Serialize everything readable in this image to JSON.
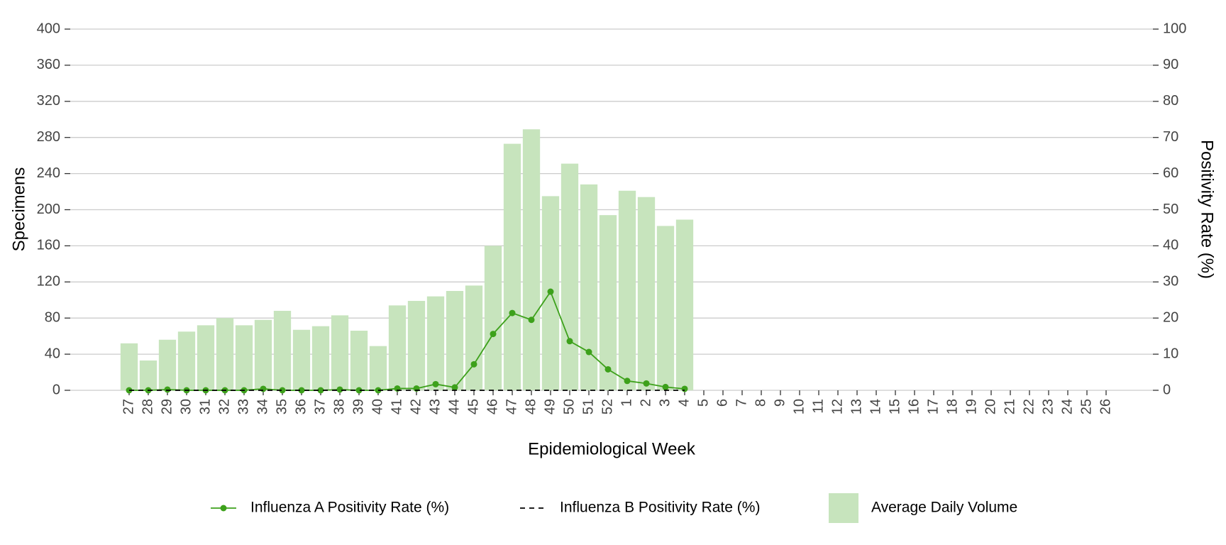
{
  "chart_data": {
    "type": "bar",
    "xlabel": "Epidemiological Week",
    "ylabel": "Specimens",
    "y2label": "Positivity Rate (%)",
    "categories": [
      "27",
      "28",
      "29",
      "30",
      "31",
      "32",
      "33",
      "34",
      "35",
      "36",
      "37",
      "38",
      "39",
      "40",
      "41",
      "42",
      "43",
      "44",
      "45",
      "46",
      "47",
      "48",
      "49",
      "50",
      "51",
      "52",
      "1",
      "2",
      "3",
      "4",
      "5",
      "6",
      "7",
      "8",
      "9",
      "10",
      "11",
      "12",
      "13",
      "14",
      "15",
      "16",
      "17",
      "18",
      "19",
      "20",
      "21",
      "22",
      "23",
      "24",
      "25",
      "26"
    ],
    "series": [
      {
        "name": "Influenza A Positivity Rate (%)",
        "type": "line",
        "axis": "y2",
        "color": "#3da11b",
        "markers": true,
        "values": [
          0,
          0,
          0.2,
          0,
          0,
          0,
          0,
          0.4,
          0,
          0,
          0,
          0.2,
          0,
          0,
          0.5,
          0.5,
          1.7,
          0.8,
          7.2,
          15.6,
          21.4,
          19.5,
          27.3,
          13.6,
          10.6,
          5.8,
          2.6,
          1.9,
          0.9,
          0.4,
          null,
          null,
          null,
          null,
          null,
          null,
          null,
          null,
          null,
          null,
          null,
          null,
          null,
          null,
          null,
          null,
          null,
          null,
          null,
          null,
          null,
          null
        ]
      },
      {
        "name": "Influenza B Positivity Rate (%)",
        "type": "line",
        "axis": "y2",
        "color": "#000000",
        "dashed": true,
        "values": [
          0,
          0,
          0,
          0,
          0,
          0,
          0,
          0,
          0,
          0,
          0,
          0,
          0,
          0,
          0,
          0,
          0,
          0,
          0,
          0,
          0,
          0,
          0,
          0,
          0,
          0,
          0,
          0,
          0,
          0,
          null,
          null,
          null,
          null,
          null,
          null,
          null,
          null,
          null,
          null,
          null,
          null,
          null,
          null,
          null,
          null,
          null,
          null,
          null,
          null,
          null,
          null
        ]
      },
      {
        "name": "Average Daily Volume",
        "type": "bar",
        "axis": "y",
        "color": "#c7e4bd",
        "values": [
          52,
          33,
          56,
          65,
          72,
          80,
          72,
          78,
          88,
          67,
          71,
          83,
          66,
          49,
          94,
          99,
          104,
          110,
          116,
          160,
          273,
          289,
          215,
          251,
          228,
          194,
          221,
          214,
          182,
          189,
          null,
          null,
          null,
          null,
          null,
          null,
          null,
          null,
          null,
          null,
          null,
          null,
          null,
          null,
          null,
          null,
          null,
          null,
          null,
          null,
          null,
          null
        ]
      }
    ],
    "ylim": [
      0,
      400
    ],
    "yticks": [
      0,
      40,
      80,
      120,
      160,
      200,
      240,
      280,
      320,
      360,
      400
    ],
    "y2lim": [
      0,
      100
    ],
    "y2ticks": [
      0,
      10,
      20,
      30,
      40,
      50,
      60,
      70,
      80,
      90,
      100
    ],
    "grid": true,
    "legend": "bottom"
  }
}
